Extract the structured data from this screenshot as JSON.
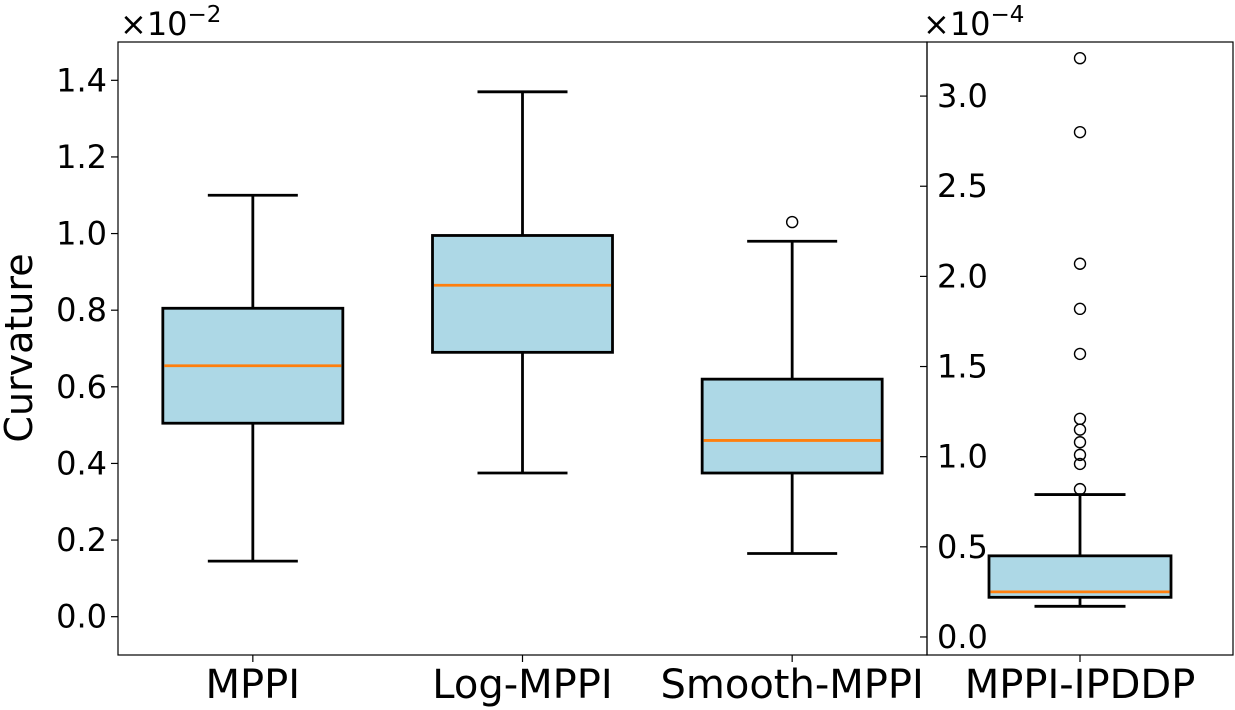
{
  "chart_data": [
    {
      "type": "box",
      "panel": "left",
      "ylabel": "Curvature",
      "scale_label": "×10",
      "scale_exponent": "−2",
      "ylim": [
        -0.1,
        1.5
      ],
      "yticks": [
        0.0,
        0.2,
        0.4,
        0.6,
        0.8,
        1.0,
        1.2,
        1.4
      ],
      "ytick_labels": [
        "0.0",
        "0.2",
        "0.4",
        "0.6",
        "0.8",
        "1.0",
        "1.2",
        "1.4"
      ],
      "categories": [
        "MPPI",
        "Log-MPPI",
        "Smooth-MPPI"
      ],
      "boxes": [
        {
          "whisker_low": 0.145,
          "q1": 0.505,
          "median": 0.655,
          "q3": 0.805,
          "whisker_high": 1.1,
          "outliers": []
        },
        {
          "whisker_low": 0.375,
          "q1": 0.69,
          "median": 0.865,
          "q3": 0.995,
          "whisker_high": 1.37,
          "outliers": []
        },
        {
          "whisker_low": 0.165,
          "q1": 0.375,
          "median": 0.46,
          "q3": 0.62,
          "whisker_high": 0.98,
          "outliers": [
            1.03
          ]
        }
      ]
    },
    {
      "type": "box",
      "panel": "right",
      "scale_label": "×10",
      "scale_exponent": "−4",
      "ylim": [
        -0.1,
        3.3
      ],
      "yticks": [
        0.0,
        0.5,
        1.0,
        1.5,
        2.0,
        2.5,
        3.0
      ],
      "ytick_labels": [
        "0.0",
        "0.5",
        "1.0",
        "1.5",
        "2.0",
        "2.5",
        "3.0"
      ],
      "categories": [
        "MPPI-IPDDP"
      ],
      "boxes": [
        {
          "whisker_low": 0.17,
          "q1": 0.22,
          "median": 0.25,
          "q3": 0.45,
          "whisker_high": 0.79,
          "outliers": [
            0.82,
            0.96,
            1.01,
            1.08,
            1.15,
            1.21,
            1.57,
            1.82,
            2.07,
            2.8,
            3.21
          ]
        }
      ]
    }
  ],
  "colors": {
    "box_fill": "#add8e6",
    "median": "#ff7f0e",
    "line": "#000000"
  }
}
